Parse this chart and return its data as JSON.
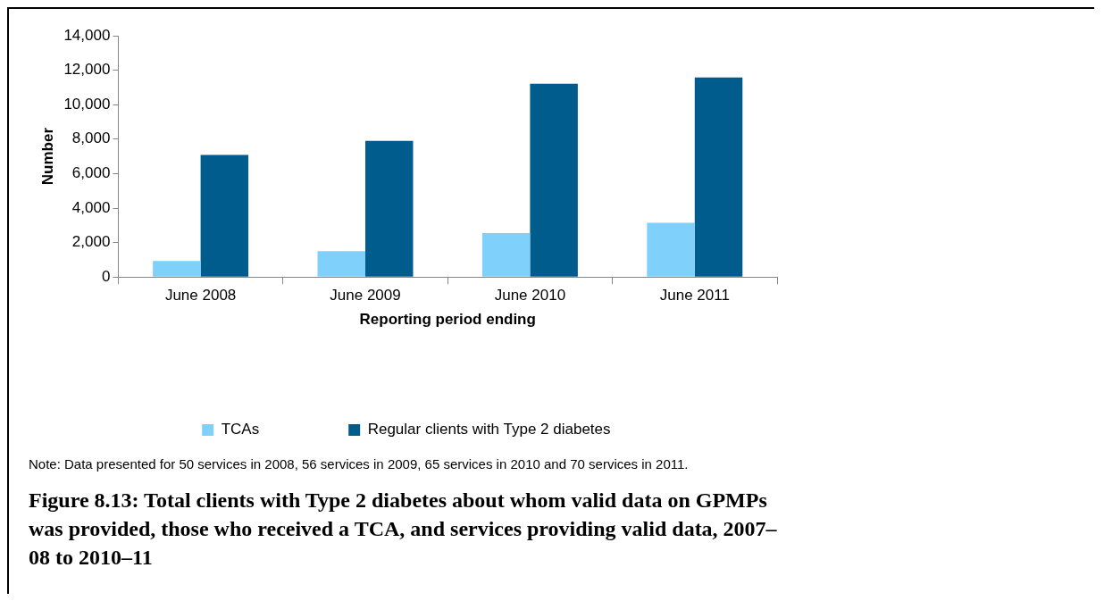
{
  "chart_data": {
    "type": "bar",
    "title": "Figure 8.13: Total clients with Type 2 diabetes about whom valid data on GPMPs was provided, those who received a TCA, and services providing valid data, 2007–08 to 2010–11",
    "xlabel": "Reporting period ending",
    "ylabel": "Number",
    "categories": [
      "June 2008",
      "June 2009",
      "June 2010",
      "June 2011"
    ],
    "series": [
      {
        "name": "TCAs",
        "color": "#80d0fc",
        "values": [
          930,
          1500,
          2550,
          3140
        ]
      },
      {
        "name": "Regular clients with Type 2 diabetes",
        "color": "#005c8c",
        "values": [
          7080,
          7900,
          11220,
          11580
        ]
      }
    ],
    "ylim": [
      0,
      14000
    ],
    "yticks": [
      {
        "value": 0,
        "label": "0"
      },
      {
        "value": 2000,
        "label": "2,000"
      },
      {
        "value": 4000,
        "label": "4,000"
      },
      {
        "value": 6000,
        "label": "6,000"
      },
      {
        "value": 8000,
        "label": "8,000"
      },
      {
        "value": 10000,
        "label": "10,000"
      },
      {
        "value": 12000,
        "label": "12,000"
      },
      {
        "value": 14000,
        "label": "14,000"
      }
    ],
    "grid": false,
    "legend": "bottom",
    "annotations": [
      "Note: Data presented for 50 services in 2008, 56 services in 2009, 65 services in 2010 and 70 services in 2011."
    ]
  }
}
